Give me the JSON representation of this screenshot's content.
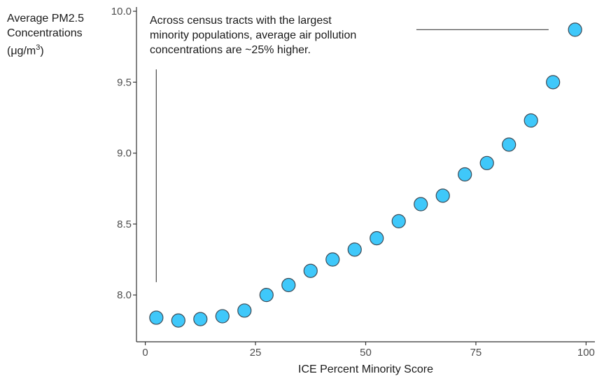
{
  "chart_data": {
    "type": "scatter",
    "title": "",
    "ylabel_lines": [
      "Average PM2.5",
      "Concentrations"
    ],
    "ylabel_unit": "(μg/m",
    "ylabel_unit_sup": "3",
    "ylabel_unit_close": ")",
    "xlabel": "ICE Percent Minority Score",
    "annotation_lines": [
      "Across census tracts with the largest",
      "minority populations, average air pollution",
      "concentrations are ~25% higher."
    ],
    "xlim": [
      -2,
      102
    ],
    "ylim": [
      7.67,
      10.03
    ],
    "xticks": [
      0,
      25,
      50,
      75,
      100
    ],
    "xtick_labels": [
      "0",
      "25",
      "50",
      "75",
      "100"
    ],
    "yticks": [
      8.0,
      8.5,
      9.0,
      9.5,
      10.0
    ],
    "ytick_labels": [
      "8.0",
      "8.5",
      "9.0",
      "9.5",
      "10.0"
    ],
    "grid": false,
    "marker_color": "#3FC8FA",
    "marker_edge_color": "#3d4a55",
    "axis_color": "#333333",
    "bracket_color": "#555555",
    "bracket": {
      "vertical_x": 2.5,
      "vertical_y": [
        8.09,
        9.59
      ],
      "horizontal_y": 9.87,
      "horizontal_x": [
        61.5,
        91.5
      ]
    },
    "x": [
      2.5,
      7.5,
      12.5,
      17.5,
      22.5,
      27.5,
      32.5,
      37.5,
      42.5,
      47.5,
      52.5,
      57.5,
      62.5,
      67.5,
      72.5,
      77.5,
      82.5,
      87.5,
      92.5,
      97.5
    ],
    "y": [
      7.84,
      7.82,
      7.83,
      7.85,
      7.89,
      8.0,
      8.07,
      8.17,
      8.25,
      8.32,
      8.4,
      8.52,
      8.64,
      8.7,
      8.85,
      8.93,
      9.06,
      9.23,
      9.5,
      9.87
    ]
  }
}
